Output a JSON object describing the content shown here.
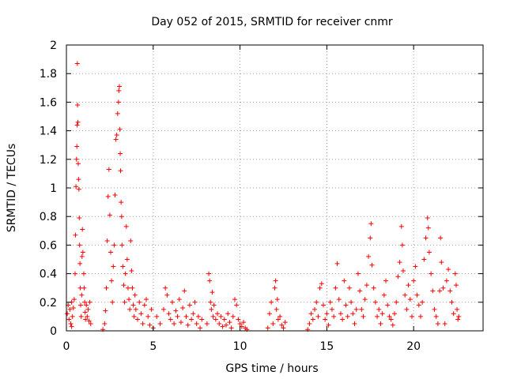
{
  "chart_data": {
    "type": "scatter",
    "title": "Day 052 of 2015, SRMTID for receiver cnmr",
    "xlabel": "GPS time / hours",
    "ylabel": "SRMTID / TECUs",
    "xlim": [
      0,
      24
    ],
    "ylim": [
      0,
      2
    ],
    "xticks": [
      0,
      5,
      10,
      15,
      20
    ],
    "xtick_labels": [
      "0",
      "5",
      "10",
      "15",
      "20"
    ],
    "yticks": [
      0,
      0.2,
      0.4,
      0.6,
      0.8,
      1,
      1.2,
      1.4,
      1.6,
      1.8,
      2
    ],
    "ytick_labels": [
      "0",
      "0.2",
      "0.4",
      "0.6",
      "0.8",
      "1",
      "1.2",
      "1.4",
      "1.6",
      "1.8",
      "2"
    ],
    "grid": true,
    "marker": "+",
    "marker_color": "#ff0000",
    "series": [
      {
        "name": "SRMTID",
        "points": [
          [
            0.05,
            0.12
          ],
          [
            0.1,
            0.18
          ],
          [
            0.15,
            0.08
          ],
          [
            0.2,
            0.15
          ],
          [
            0.25,
            0.05
          ],
          [
            0.3,
            0.2
          ],
          [
            0.35,
            0.1
          ],
          [
            0.4,
            0.16
          ],
          [
            0.45,
            0.22
          ],
          [
            0.3,
            0.03
          ],
          [
            0.5,
            0.4
          ],
          [
            0.52,
            0.67
          ],
          [
            0.55,
            1.01
          ],
          [
            0.58,
            1.2
          ],
          [
            0.6,
            1.29
          ],
          [
            0.62,
            1.44
          ],
          [
            0.63,
            1.87
          ],
          [
            0.64,
            1.58
          ],
          [
            0.66,
            1.46
          ],
          [
            0.68,
            1.17
          ],
          [
            0.7,
            1.06
          ],
          [
            0.72,
            0.99
          ],
          [
            0.74,
            0.79
          ],
          [
            0.76,
            0.6
          ],
          [
            0.78,
            0.47
          ],
          [
            0.8,
            0.3
          ],
          [
            0.82,
            0.18
          ],
          [
            0.85,
            0.1
          ],
          [
            0.88,
            0.25
          ],
          [
            0.9,
            0.52
          ],
          [
            0.92,
            0.71
          ],
          [
            0.95,
            0.55
          ],
          [
            1.0,
            0.4
          ],
          [
            1.02,
            0.3
          ],
          [
            1.05,
            0.2
          ],
          [
            1.08,
            0.13
          ],
          [
            1.1,
            0.08
          ],
          [
            1.15,
            0.18
          ],
          [
            1.2,
            0.1
          ],
          [
            1.25,
            0.15
          ],
          [
            1.3,
            0.07
          ],
          [
            1.35,
            0.2
          ],
          [
            1.4,
            0.05
          ],
          [
            2.1,
            0.01
          ],
          [
            2.2,
            0.05
          ],
          [
            2.25,
            0.14
          ],
          [
            2.3,
            0.3
          ],
          [
            2.35,
            0.63
          ],
          [
            2.4,
            0.94
          ],
          [
            2.45,
            1.13
          ],
          [
            2.5,
            0.81
          ],
          [
            2.55,
            0.55
          ],
          [
            2.6,
            0.35
          ],
          [
            2.65,
            0.2
          ],
          [
            2.7,
            0.45
          ],
          [
            2.75,
            0.6
          ],
          [
            2.8,
            0.95
          ],
          [
            2.85,
            1.34
          ],
          [
            2.9,
            1.37
          ],
          [
            2.95,
            1.52
          ],
          [
            3.0,
            1.6
          ],
          [
            3.02,
            1.68
          ],
          [
            3.05,
            1.71
          ],
          [
            3.08,
            1.41
          ],
          [
            3.1,
            1.24
          ],
          [
            3.12,
            1.12
          ],
          [
            3.15,
            0.9
          ],
          [
            3.18,
            0.8
          ],
          [
            3.2,
            0.6
          ],
          [
            3.25,
            0.45
          ],
          [
            3.3,
            0.32
          ],
          [
            3.35,
            0.2
          ],
          [
            3.4,
            0.4
          ],
          [
            3.45,
            0.73
          ],
          [
            3.5,
            0.5
          ],
          [
            3.55,
            0.3
          ],
          [
            3.6,
            0.22
          ],
          [
            3.65,
            0.15
          ],
          [
            3.7,
            0.63
          ],
          [
            3.75,
            0.42
          ],
          [
            3.8,
            0.3
          ],
          [
            3.85,
            0.18
          ],
          [
            3.9,
            0.1
          ],
          [
            3.95,
            0.25
          ],
          [
            4.0,
            0.15
          ],
          [
            4.1,
            0.08
          ],
          [
            4.2,
            0.2
          ],
          [
            4.3,
            0.12
          ],
          [
            4.4,
            0.05
          ],
          [
            4.5,
            0.18
          ],
          [
            4.6,
            0.22
          ],
          [
            4.7,
            0.1
          ],
          [
            4.8,
            0.04
          ],
          [
            4.9,
            0.15
          ],
          [
            5.0,
            0.02
          ],
          [
            5.2,
            0.1
          ],
          [
            5.4,
            0.05
          ],
          [
            5.6,
            0.15
          ],
          [
            5.7,
            0.3
          ],
          [
            5.8,
            0.25
          ],
          [
            5.9,
            0.12
          ],
          [
            6.0,
            0.08
          ],
          [
            6.1,
            0.2
          ],
          [
            6.2,
            0.05
          ],
          [
            6.3,
            0.14
          ],
          [
            6.4,
            0.1
          ],
          [
            6.5,
            0.22
          ],
          [
            6.6,
            0.06
          ],
          [
            6.7,
            0.16
          ],
          [
            6.8,
            0.28
          ],
          [
            6.9,
            0.1
          ],
          [
            7.0,
            0.04
          ],
          [
            7.1,
            0.18
          ],
          [
            7.2,
            0.08
          ],
          [
            7.3,
            0.12
          ],
          [
            7.4,
            0.2
          ],
          [
            7.5,
            0.05
          ],
          [
            7.6,
            0.1
          ],
          [
            7.7,
            0.02
          ],
          [
            7.8,
            0.08
          ],
          [
            8.1,
            0.05
          ],
          [
            8.2,
            0.4
          ],
          [
            8.25,
            0.35
          ],
          [
            8.3,
            0.2
          ],
          [
            8.35,
            0.15
          ],
          [
            8.4,
            0.27
          ],
          [
            8.45,
            0.1
          ],
          [
            8.5,
            0.18
          ],
          [
            8.6,
            0.08
          ],
          [
            8.7,
            0.12
          ],
          [
            8.8,
            0.05
          ],
          [
            8.9,
            0.1
          ],
          [
            9.0,
            0.03
          ],
          [
            9.1,
            0.08
          ],
          [
            9.2,
            0.04
          ],
          [
            9.3,
            0.12
          ],
          [
            9.4,
            0.06
          ],
          [
            9.5,
            0.02
          ],
          [
            9.6,
            0.1
          ],
          [
            9.7,
            0.22
          ],
          [
            9.8,
            0.18
          ],
          [
            9.9,
            0.08
          ],
          [
            10.0,
            0.05
          ],
          [
            10.1,
            0.03
          ],
          [
            10.2,
            0.06
          ],
          [
            10.3,
            0.02
          ],
          [
            10.4,
            0.01
          ],
          [
            11.6,
            0.02
          ],
          [
            11.7,
            0.12
          ],
          [
            11.8,
            0.2
          ],
          [
            11.9,
            0.05
          ],
          [
            12.0,
            0.3
          ],
          [
            12.05,
            0.35
          ],
          [
            12.1,
            0.15
          ],
          [
            12.15,
            0.22
          ],
          [
            12.2,
            0.08
          ],
          [
            12.3,
            0.1
          ],
          [
            12.4,
            0.04
          ],
          [
            12.5,
            0.02
          ],
          [
            12.6,
            0.06
          ],
          [
            13.9,
            0.01
          ],
          [
            14.0,
            0.05
          ],
          [
            14.1,
            0.12
          ],
          [
            14.2,
            0.08
          ],
          [
            14.3,
            0.15
          ],
          [
            14.4,
            0.2
          ],
          [
            14.5,
            0.1
          ],
          [
            14.6,
            0.3
          ],
          [
            14.7,
            0.33
          ],
          [
            14.8,
            0.18
          ],
          [
            14.9,
            0.08
          ],
          [
            15.0,
            0.12
          ],
          [
            15.1,
            0.04
          ],
          [
            15.2,
            0.2
          ],
          [
            15.3,
            0.15
          ],
          [
            15.4,
            0.1
          ],
          [
            15.5,
            0.3
          ],
          [
            15.6,
            0.47
          ],
          [
            15.7,
            0.22
          ],
          [
            15.8,
            0.12
          ],
          [
            15.9,
            0.08
          ],
          [
            16.0,
            0.35
          ],
          [
            16.1,
            0.18
          ],
          [
            16.2,
            0.1
          ],
          [
            16.3,
            0.3
          ],
          [
            16.4,
            0.2
          ],
          [
            16.5,
            0.12
          ],
          [
            16.6,
            0.05
          ],
          [
            16.7,
            0.15
          ],
          [
            16.8,
            0.4
          ],
          [
            16.9,
            0.28
          ],
          [
            17.0,
            0.15
          ],
          [
            17.1,
            0.1
          ],
          [
            17.2,
            0.22
          ],
          [
            17.3,
            0.32
          ],
          [
            17.4,
            0.52
          ],
          [
            17.5,
            0.65
          ],
          [
            17.55,
            0.75
          ],
          [
            17.6,
            0.46
          ],
          [
            17.7,
            0.3
          ],
          [
            17.8,
            0.2
          ],
          [
            17.9,
            0.1
          ],
          [
            18.0,
            0.15
          ],
          [
            18.1,
            0.05
          ],
          [
            18.2,
            0.12
          ],
          [
            18.3,
            0.25
          ],
          [
            18.4,
            0.35
          ],
          [
            18.5,
            0.18
          ],
          [
            18.6,
            0.1
          ],
          [
            18.7,
            0.08
          ],
          [
            18.8,
            0.04
          ],
          [
            18.9,
            0.12
          ],
          [
            19.0,
            0.2
          ],
          [
            19.1,
            0.38
          ],
          [
            19.2,
            0.48
          ],
          [
            19.3,
            0.73
          ],
          [
            19.35,
            0.6
          ],
          [
            19.4,
            0.42
          ],
          [
            19.5,
            0.25
          ],
          [
            19.6,
            0.15
          ],
          [
            19.7,
            0.32
          ],
          [
            19.8,
            0.22
          ],
          [
            19.9,
            0.1
          ],
          [
            20.0,
            0.35
          ],
          [
            20.1,
            0.45
          ],
          [
            20.2,
            0.25
          ],
          [
            20.3,
            0.18
          ],
          [
            20.4,
            0.1
          ],
          [
            20.5,
            0.2
          ],
          [
            20.6,
            0.5
          ],
          [
            20.7,
            0.65
          ],
          [
            20.8,
            0.79
          ],
          [
            20.85,
            0.72
          ],
          [
            20.9,
            0.55
          ],
          [
            21.0,
            0.4
          ],
          [
            21.1,
            0.28
          ],
          [
            21.2,
            0.15
          ],
          [
            21.3,
            0.1
          ],
          [
            21.4,
            0.05
          ],
          [
            21.5,
            0.28
          ],
          [
            21.55,
            0.65
          ],
          [
            21.6,
            0.48
          ],
          [
            21.7,
            0.3
          ],
          [
            21.8,
            0.05
          ],
          [
            21.9,
            0.35
          ],
          [
            22.0,
            0.43
          ],
          [
            22.1,
            0.28
          ],
          [
            22.2,
            0.2
          ],
          [
            22.3,
            0.12
          ],
          [
            22.4,
            0.4
          ],
          [
            22.45,
            0.32
          ],
          [
            22.5,
            0.15
          ],
          [
            22.55,
            0.08
          ],
          [
            22.6,
            0.1
          ]
        ]
      }
    ]
  }
}
